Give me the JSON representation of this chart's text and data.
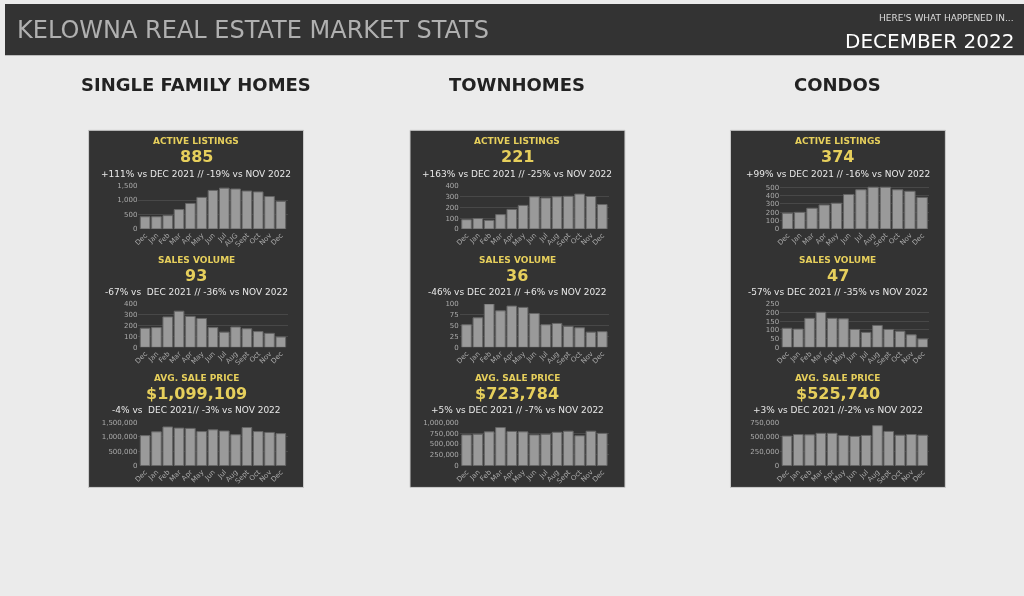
{
  "chart_data": [
    {
      "type": "other",
      "title": "KELOWNA REAL ESTATE MARKET STATS",
      "annotations": [
        "HERE'S WHAT HAPPENED IN...",
        "DECEMBER 2022",
        "SINGLE FAMILY HOMES",
        "TOWNHOMES",
        "CONDOS"
      ]
    },
    {
      "type": "bar",
      "title": "ACTIVE LISTINGS",
      "subtitle": "885",
      "annotations": [
        "+111% vs DEC 2021 // -19% vs NOV 2022"
      ],
      "categories": [
        "Dec",
        "Jan",
        "Feb",
        "Mar",
        "Apr",
        "May",
        "Jun",
        "Jul",
        "AUG",
        "Sept",
        "Oct",
        "Nov",
        "Dec"
      ],
      "values": [
        420,
        420,
        460,
        670,
        880,
        1090,
        1330,
        1410,
        1380,
        1310,
        1280,
        1120,
        950
      ],
      "color": "#9a9a9a",
      "ylim": [
        0,
        1500
      ],
      "yticks": [
        0,
        500,
        {
          "value": 1000,
          "label": "1,000"
        },
        {
          "value": 1500,
          "label": "1,500"
        }
      ],
      "grid": "y"
    },
    {
      "type": "bar",
      "title": "SALES VOLUME",
      "subtitle": "93",
      "annotations": [
        "-67% vs  DEC 2021 // -36% vs NOV 2022"
      ],
      "categories": [
        "Dec",
        "Jan",
        "Feb",
        "Mar",
        "Apr",
        "May",
        "Jun",
        "Jul",
        "Aug",
        "Sept",
        "Oct",
        "Nov",
        "Dec"
      ],
      "values": [
        176,
        182,
        280,
        333,
        285,
        266,
        182,
        140,
        187,
        171,
        145,
        129,
        95
      ],
      "color": "#9a9a9a",
      "ylim": [
        0,
        400
      ],
      "yticks": [
        0,
        100,
        200,
        300,
        400
      ],
      "grid": "y"
    },
    {
      "type": "bar",
      "title": "AVG. SALE PRICE",
      "subtitle": "$1,099,109",
      "annotations": [
        "-4% vs  DEC 2021// -3% vs NOV 2022"
      ],
      "categories": [
        "Dec",
        "Jan",
        "Feb",
        "Mar",
        "Apr",
        "May",
        "Jun",
        "Jul",
        "Aug",
        "Sept",
        "Oct",
        "Nov",
        "Dec"
      ],
      "values": [
        1040000,
        1170000,
        1340000,
        1300000,
        1290000,
        1180000,
        1240000,
        1200000,
        1070000,
        1320000,
        1180000,
        1150000,
        1110000
      ],
      "color": "#9a9a9a",
      "ylim": [
        0,
        1500000
      ],
      "yticks": [
        0,
        {
          "value": 500000,
          "label": "500,000"
        },
        {
          "value": 1000000,
          "label": "1,000,000"
        },
        {
          "value": 1500000,
          "label": "1,500,000"
        }
      ],
      "grid": "y"
    },
    {
      "type": "bar",
      "title": "ACTIVE LISTINGS",
      "subtitle": "221",
      "annotations": [
        "+163% vs DEC 2021 // -25% vs NOV 2022"
      ],
      "categories": [
        "Dec",
        "Jan",
        "Feb",
        "Mar",
        "Apr",
        "May",
        "Jun",
        "Jul",
        "Aug",
        "Sept",
        "Oct",
        "Nov",
        "Dec"
      ],
      "values": [
        85,
        96,
        79,
        132,
        180,
        217,
        296,
        285,
        296,
        301,
        321,
        299,
        225
      ],
      "color": "#9a9a9a",
      "ylim": [
        0,
        400
      ],
      "yticks": [
        0,
        100,
        200,
        300,
        400
      ],
      "grid": "y"
    },
    {
      "type": "bar",
      "title": "SALES VOLUME",
      "subtitle": "36",
      "annotations": [
        "-46% vs DEC 2021 // +6% vs NOV 2022"
      ],
      "categories": [
        "Dec",
        "Jan",
        "Feb",
        "Mar",
        "Apr",
        "May",
        "Jun",
        "Jul",
        "Aug",
        "Sept",
        "Oct",
        "Nov",
        "Dec"
      ],
      "values": [
        52,
        68,
        100,
        84,
        95,
        92,
        78,
        52,
        55,
        48,
        45,
        35,
        36
      ],
      "color": "#9a9a9a",
      "ylim": [
        0,
        100
      ],
      "yticks": [
        0,
        25,
        50,
        75,
        100
      ],
      "grid": "y"
    },
    {
      "type": "bar",
      "title": "AVG. SALE PRICE",
      "subtitle": "$723,784",
      "annotations": [
        "+5% vs DEC 2021 // -7% vs NOV 2022"
      ],
      "categories": [
        "Dec",
        "Jan",
        "Feb",
        "Mar",
        "Apr",
        "May",
        "Jun",
        "Jul",
        "Aug",
        "Sept",
        "Oct",
        "Nov",
        "Dec"
      ],
      "values": [
        710000,
        725000,
        780000,
        880000,
        790000,
        780000,
        710000,
        725000,
        770000,
        795000,
        690000,
        795000,
        745000
      ],
      "color": "#9a9a9a",
      "ylim": [
        0,
        1000000
      ],
      "yticks": [
        0,
        {
          "value": 250000,
          "label": "250,000"
        },
        {
          "value": 500000,
          "label": "500,000"
        },
        {
          "value": 750000,
          "label": "750,000"
        },
        {
          "value": 1000000,
          "label": "1,000,000"
        }
      ],
      "grid": "y"
    },
    {
      "type": "bar",
      "title": "ACTIVE LISTINGS",
      "subtitle": "374",
      "annotations": [
        "+99% vs DEC 2021 // -16% vs NOV 2022"
      ],
      "categories": [
        "Dec",
        "Jan",
        "Mar",
        "Apr",
        "May",
        "Jun",
        "Jul",
        "Aug",
        "Sept",
        "Oct",
        "Nov",
        "Dec"
      ],
      "values": [
        189,
        199,
        248,
        287,
        308,
        413,
        469,
        500,
        500,
        469,
        451,
        378
      ],
      "color": "#9a9a9a",
      "ylim": [
        0,
        520
      ],
      "yticks": [
        0,
        100,
        200,
        300,
        400,
        500
      ],
      "grid": "y"
    },
    {
      "type": "bar",
      "title": "SALES VOLUME",
      "subtitle": "47",
      "annotations": [
        "-57% vs DEC 2021 // -35% vs NOV 2022"
      ],
      "categories": [
        "Dec",
        "Jan",
        "Feb",
        "Mar",
        "Apr",
        "May",
        "Jun",
        "Jul",
        "Aug",
        "Sept",
        "Oct",
        "Nov",
        "Dec"
      ],
      "values": [
        110,
        105,
        167,
        202,
        167,
        164,
        103,
        86,
        126,
        103,
        93,
        72,
        48
      ],
      "color": "#9a9a9a",
      "ylim": [
        0,
        250
      ],
      "yticks": [
        0,
        50,
        100,
        150,
        200,
        250
      ],
      "grid": "y"
    },
    {
      "type": "bar",
      "title": "AVG. SALE PRICE",
      "subtitle": "$525,740",
      "annotations": [
        "+3% vs DEC 2021 //-2% vs NOV 2022"
      ],
      "categories": [
        "Dec",
        "Jan",
        "Feb",
        "Mar",
        "Apr",
        "May",
        "Jun",
        "Jul",
        "Aug",
        "Sept",
        "Oct",
        "Nov",
        "Dec"
      ],
      "values": [
        512000,
        539000,
        533000,
        560000,
        560000,
        523000,
        507000,
        523000,
        692000,
        592000,
        528000,
        539000,
        528000
      ],
      "color": "#9a9a9a",
      "ylim": [
        0,
        750000
      ],
      "yticks": [
        0,
        {
          "value": 250000,
          "label": "250,000"
        },
        {
          "value": 500000,
          "label": "500,000"
        },
        {
          "value": 750000,
          "label": "750,000"
        }
      ],
      "grid": "y"
    }
  ]
}
